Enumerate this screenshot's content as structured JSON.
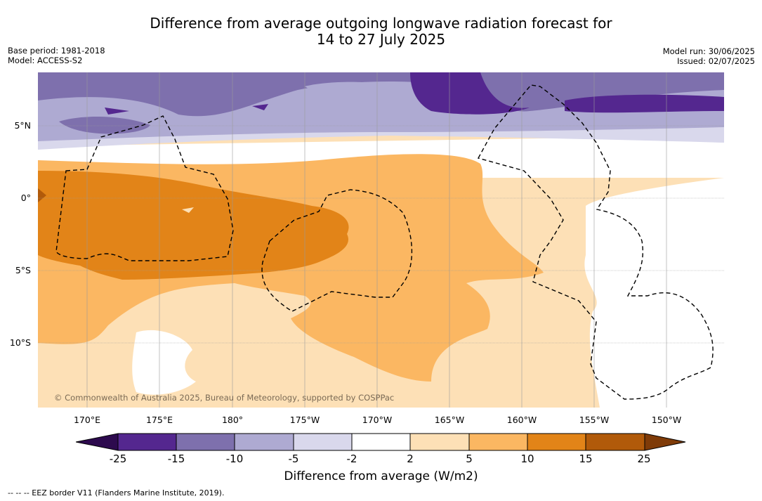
{
  "header": {
    "title_line1": "Difference from average outgoing longwave radiation forecast for",
    "title_line2": "14 to 27 July 2025",
    "base_period": "Base period: 1981-2018",
    "model": "Model: ACCESS-S2",
    "model_run": "Model run: 30/06/2025",
    "issued": "Issued: 02/07/2025"
  },
  "map": {
    "copyright": "© Commonwealth of Australia 2025, Bureau of Meteorology, supported by COSPPac",
    "lat_labels": [
      "5°N",
      "0°",
      "5°S",
      "10°S"
    ],
    "lon_labels": [
      "170°E",
      "175°E",
      "180°",
      "175°W",
      "170°W",
      "165°W",
      "160°W",
      "155°W",
      "150°W"
    ]
  },
  "legend": {
    "tick_labels": [
      "-25",
      "-15",
      "-10",
      "-5",
      "-2",
      "2",
      "5",
      "10",
      "15",
      "25"
    ],
    "colors": {
      "below_min": "#2d0a4e",
      "lt_m15": "#54278f",
      "m15_m10": "#7e70ad",
      "m10_m5": "#aeaad2",
      "m5_m2": "#d9d8ec",
      "m2_2": "#ffffff",
      "p2_5": "#fde0b6",
      "p5_10": "#fbb762",
      "p10_15": "#e28418",
      "p15_25": "#b15a0a",
      "above_max": "#7f3b08"
    },
    "title": "Difference from average (W/m2)"
  },
  "footnote": "--  --  -- EEZ border V11 (Flanders Marine Institute, 2019)."
}
